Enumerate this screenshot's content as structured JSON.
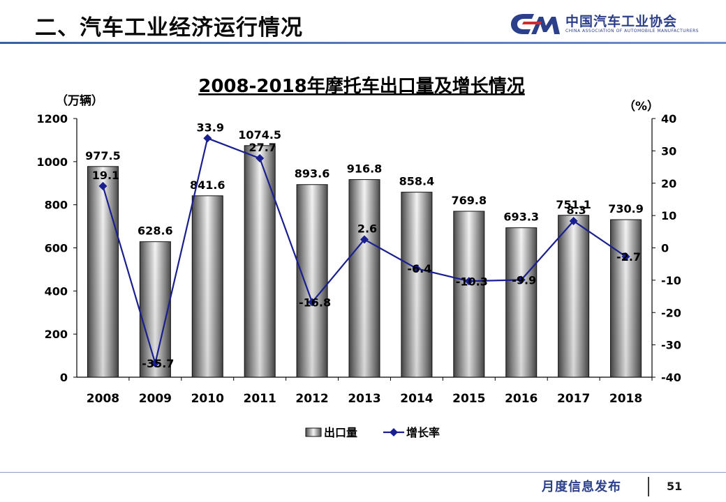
{
  "header": {
    "section_title": "二、汽车工业经济运行情况",
    "logo_cn": "中国汽车工业协会",
    "logo_en": "CHINA ASSOCIATION OF AUTOMOBILE MANUFACTURERS",
    "logo_text": "CAM"
  },
  "footer": {
    "label": "月度信息发布",
    "page_number": "51"
  },
  "chart_data": {
    "type": "bar",
    "title": "2008-2018年摩托车出口量及增长情况",
    "left_unit": "（万辆）",
    "right_unit": "（%）",
    "categories": [
      "2008",
      "2009",
      "2010",
      "2011",
      "2012",
      "2013",
      "2014",
      "2015",
      "2016",
      "2017",
      "2018"
    ],
    "series": [
      {
        "name": "出口量",
        "type": "bar",
        "axis": "left",
        "values": [
          977.5,
          628.6,
          841.6,
          1074.5,
          893.6,
          916.8,
          858.4,
          769.8,
          693.3,
          751.1,
          730.9
        ],
        "labels": [
          "977.5",
          "628.6",
          "841.6",
          "1074.5",
          "893.6",
          "916.8",
          "858.4",
          "769.8",
          "693.3",
          "751.1",
          "730.9"
        ]
      },
      {
        "name": "增长率",
        "type": "line",
        "axis": "right",
        "color": "#1a1f8f",
        "values": [
          19.1,
          -35.7,
          33.9,
          27.7,
          -16.8,
          2.6,
          -6.4,
          -10.3,
          -9.9,
          8.3,
          -2.7
        ],
        "labels": [
          "19.1",
          "-35.7",
          "33.9",
          "27.7",
          "-16.8",
          "2.6",
          "-6.4",
          "-10.3",
          "-9.9",
          "8.3",
          "-2.7"
        ]
      }
    ],
    "y_left": {
      "min": 0,
      "max": 1200,
      "ticks": [
        "0",
        "200",
        "400",
        "600",
        "800",
        "1000",
        "1200"
      ]
    },
    "y_right": {
      "min": -40,
      "max": 40,
      "ticks": [
        "-40",
        "-30",
        "-20",
        "-10",
        "0",
        "10",
        "20",
        "30",
        "40"
      ]
    },
    "grid": false,
    "legend_position": "bottom"
  }
}
